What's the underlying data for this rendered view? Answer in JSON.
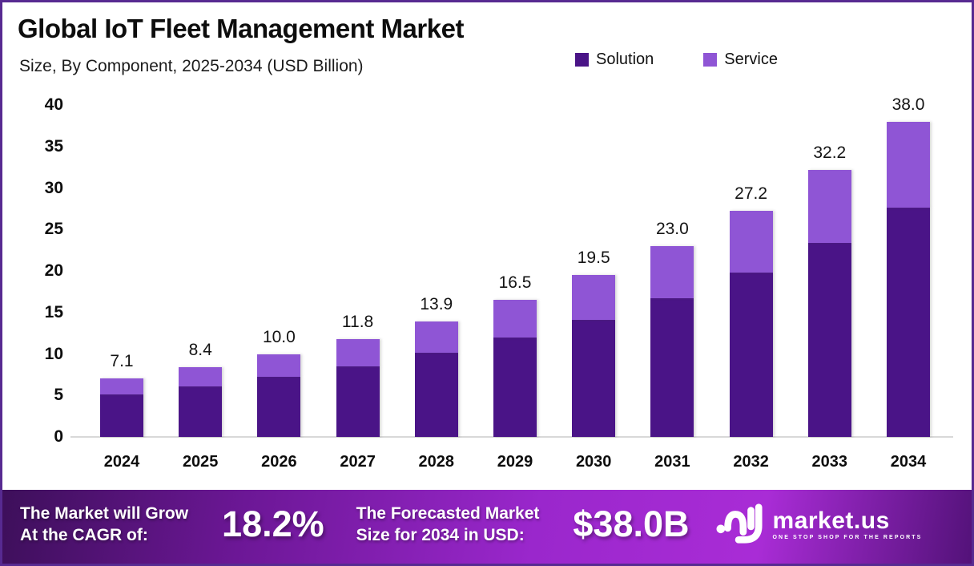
{
  "header": {
    "title": "Global IoT Fleet Management Market",
    "subtitle": "Size, By Component, 2025-2034 (USD Billion)"
  },
  "legend": [
    {
      "label": "Solution",
      "color": "#4a1487"
    },
    {
      "label": "Service",
      "color": "#8f55d5"
    }
  ],
  "chart_data": {
    "type": "bar",
    "stacked": true,
    "title": "Global IoT Fleet Management Market Size, By Component, 2025-2034 (USD Billion)",
    "categories": [
      "2024",
      "2025",
      "2026",
      "2027",
      "2028",
      "2029",
      "2030",
      "2031",
      "2032",
      "2033",
      "2034"
    ],
    "series": [
      {
        "name": "Solution",
        "color": "#4a1487",
        "values": [
          5.1,
          6.1,
          7.2,
          8.5,
          10.1,
          12.0,
          14.1,
          16.7,
          19.8,
          23.4,
          27.6
        ]
      },
      {
        "name": "Service",
        "color": "#8f55d5",
        "values": [
          2.0,
          2.3,
          2.8,
          3.3,
          3.8,
          4.5,
          5.4,
          6.3,
          7.4,
          8.8,
          10.4
        ]
      }
    ],
    "totals": [
      7.1,
      8.4,
      10.0,
      11.8,
      13.9,
      16.5,
      19.5,
      23.0,
      27.2,
      32.2,
      38.0
    ],
    "total_labels": [
      "7.1",
      "8.4",
      "10.0",
      "11.8",
      "13.9",
      "16.5",
      "19.5",
      "23.0",
      "27.2",
      "32.2",
      "38.0"
    ],
    "yticks": [
      0,
      5,
      10,
      15,
      20,
      25,
      30,
      35,
      40
    ],
    "ylim": [
      0,
      40
    ],
    "xlabel": "",
    "ylabel": "",
    "grid": false,
    "legend_position": "top-right"
  },
  "banner": {
    "cagr_label_line1": "The Market will Grow",
    "cagr_label_line2": "At the CAGR of:",
    "cagr_value": "18.2%",
    "forecast_label_line1": "The Forecasted Market",
    "forecast_label_line2": "Size for 2034 in USD:",
    "forecast_value": "$38.0B",
    "logo_name": "market.us",
    "logo_tagline": "ONE STOP SHOP FOR THE REPORTS"
  },
  "colors": {
    "frame_border": "#572a91",
    "solution": "#4a1487",
    "service": "#8f55d5",
    "banner_gradient_start": "#3d0f5a",
    "banner_gradient_mid": "#a92cd6",
    "axis_line": "#d8d8d8"
  }
}
